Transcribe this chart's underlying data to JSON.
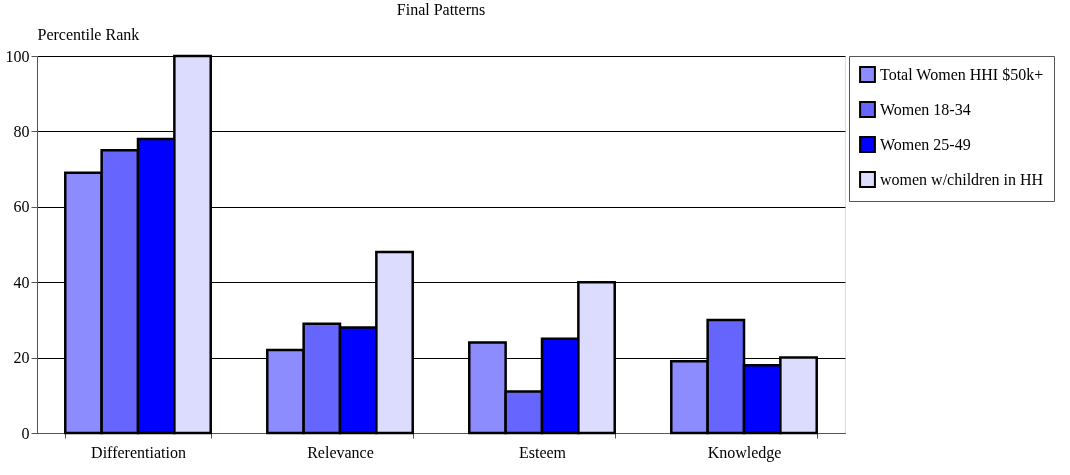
{
  "chart_data": {
    "type": "bar",
    "title": "Final Patterns",
    "ylabel": "Percentile Rank",
    "categories": [
      "Differentiation",
      "Relevance",
      "Esteem",
      "Knowledge"
    ],
    "series": [
      {
        "name": "Total Women HHI $50k+",
        "color": "#8c8cff",
        "values": [
          69,
          22,
          24,
          19
        ]
      },
      {
        "name": "Women 18-34",
        "color": "#6666ff",
        "values": [
          75,
          29,
          11,
          30
        ]
      },
      {
        "name": "Women 25-49",
        "color": "#0000ff",
        "values": [
          78,
          28,
          25,
          18
        ]
      },
      {
        "name": "women w/children in HH",
        "color": "#dcdcff",
        "values": [
          100,
          48,
          40,
          20
        ]
      }
    ],
    "ylim": [
      0,
      100
    ],
    "yticks": [
      0,
      20,
      40,
      60,
      80,
      100
    ],
    "grid": "y",
    "legend": "right"
  }
}
